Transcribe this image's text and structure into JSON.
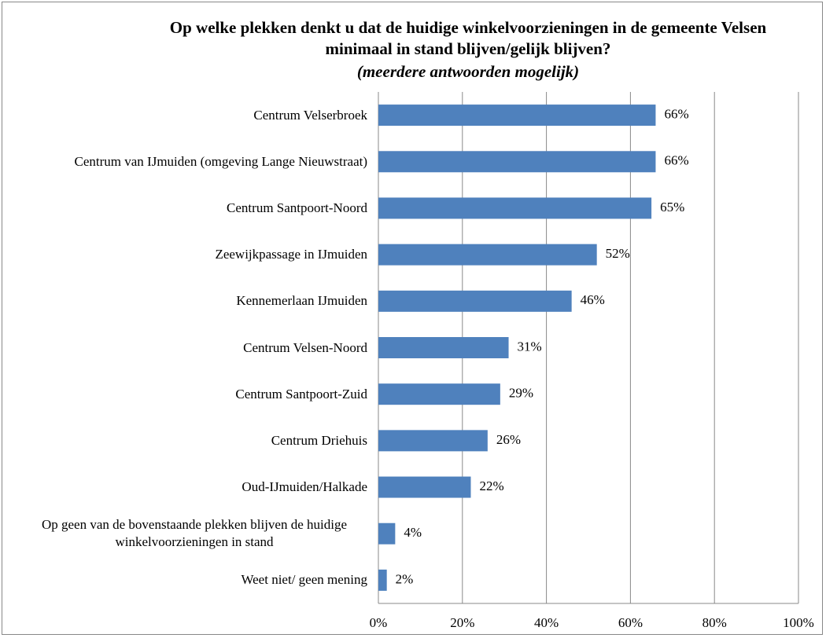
{
  "chart_data": {
    "type": "bar",
    "title": "Op welke plekken denkt u dat de huidige winkelvoorzieningen in de gemeente Velsen minimaal in stand blijven/gelijk blijven?",
    "subtitle": "(meerdere antwoorden mogelijk)",
    "categories": [
      "Centrum Velserbroek",
      "Centrum van IJmuiden (omgeving Lange Nieuwstraat)",
      "Centrum Santpoort-Noord",
      "Zeewijkpassage in IJmuiden",
      "Kennemerlaan IJmuiden",
      "Centrum Velsen-Noord",
      "Centrum Santpoort-Zuid",
      "Centrum Driehuis",
      "Oud-IJmuiden/Halkade",
      "Op geen van de bovenstaande plekken blijven de huidige winkelvoorzieningen in stand",
      "Weet niet/ geen mening"
    ],
    "values": [
      66,
      66,
      65,
      52,
      46,
      31,
      29,
      26,
      22,
      4,
      2
    ],
    "value_labels": [
      "66%",
      "66%",
      "65%",
      "52%",
      "46%",
      "31%",
      "29%",
      "26%",
      "22%",
      "4%",
      "2%"
    ],
    "color": "#4f81bd",
    "xlim": [
      0,
      100
    ],
    "xticks": [
      {
        "value": 0,
        "label": "0%"
      },
      {
        "value": 20,
        "label": "20%"
      },
      {
        "value": 40,
        "label": "40%"
      },
      {
        "value": 60,
        "label": "60%"
      },
      {
        "value": 80,
        "label": "80%"
      },
      {
        "value": 100,
        "label": "100%"
      }
    ],
    "grid": true
  }
}
